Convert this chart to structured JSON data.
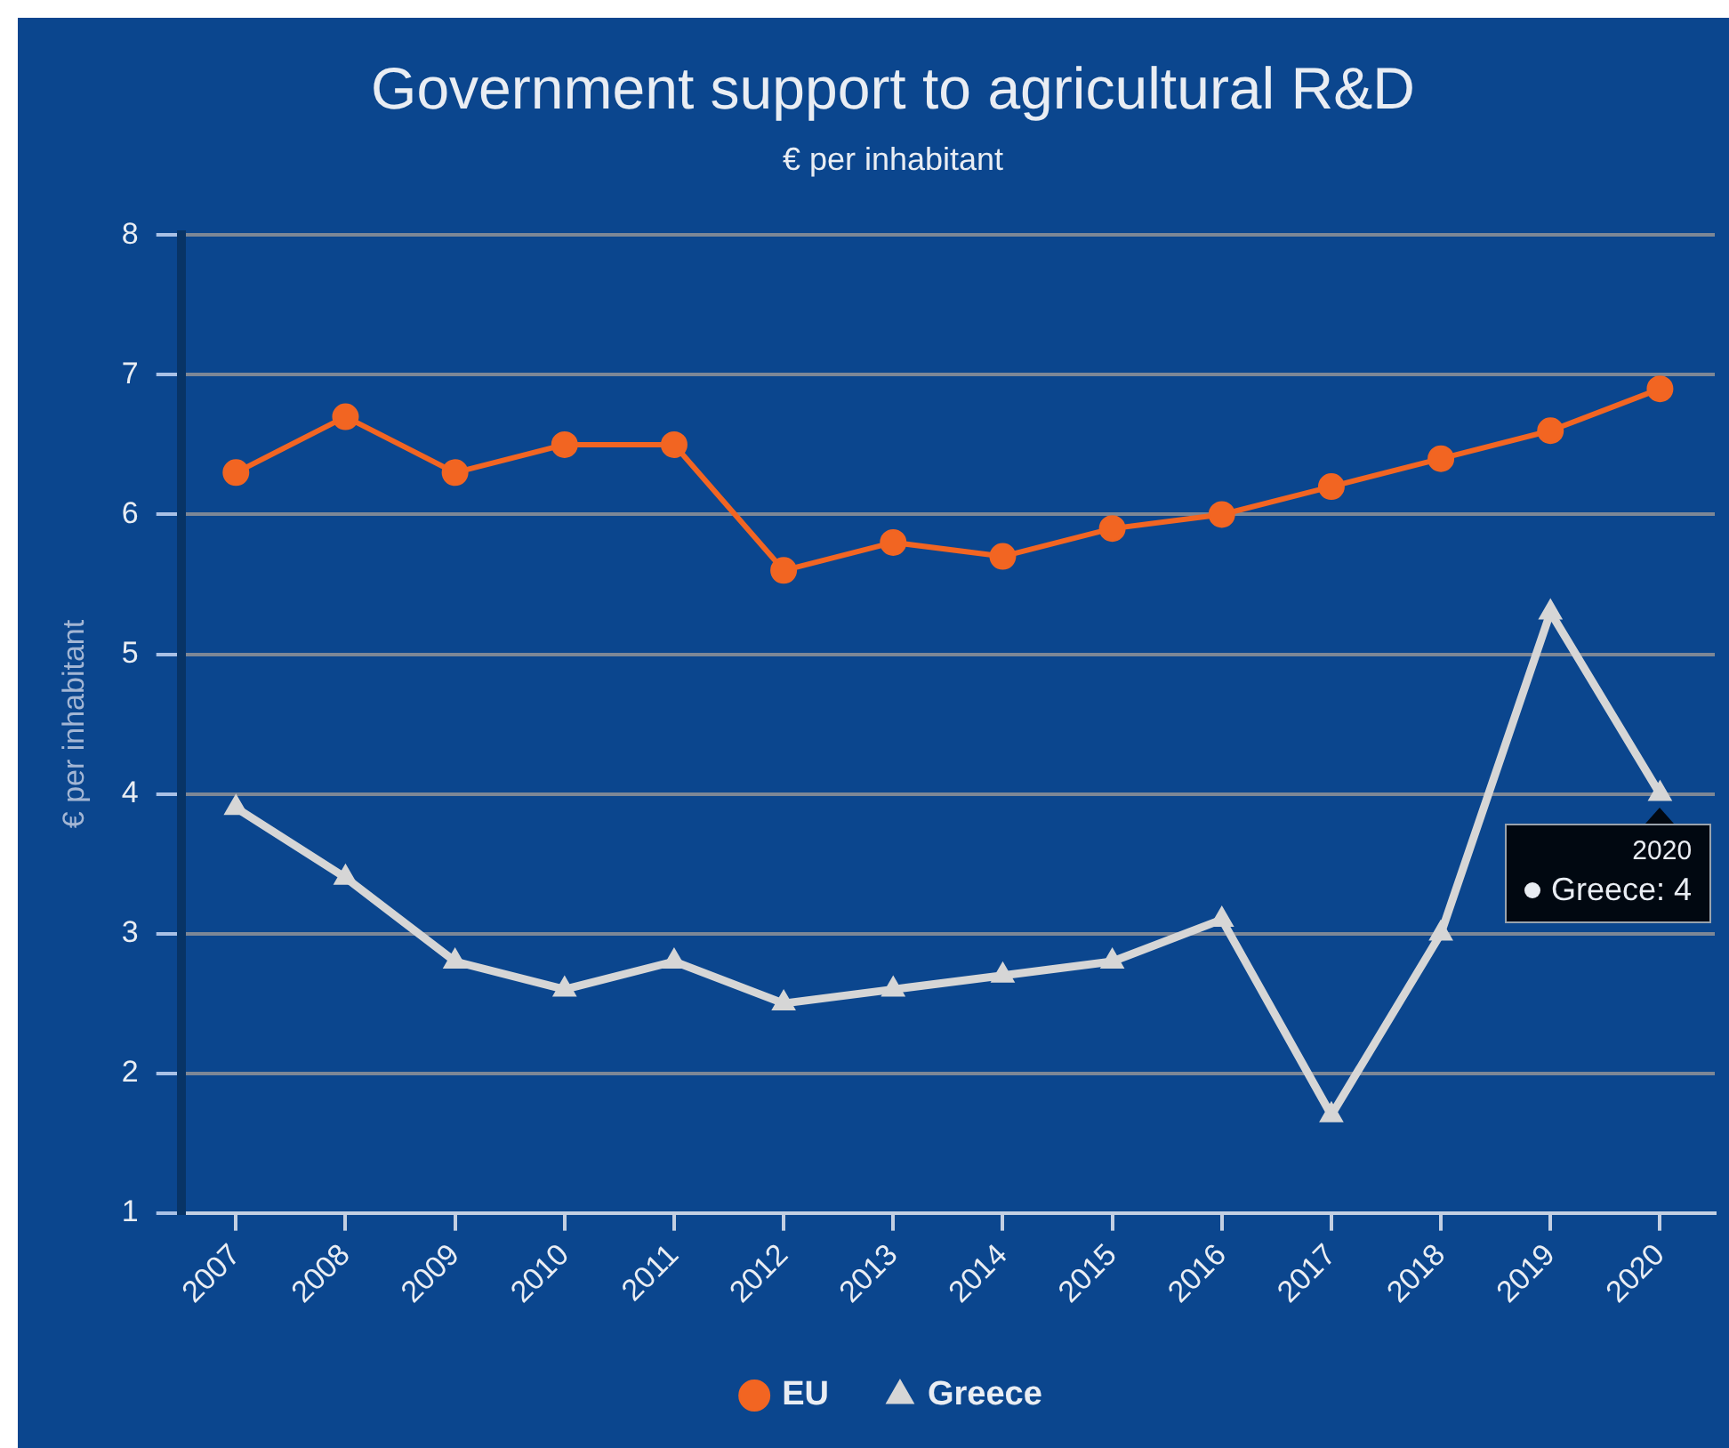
{
  "chart_data": {
    "type": "line",
    "title": "Government support to agricultural R&D",
    "subtitle": "€ per inhabitant",
    "ylabel": "€ per inhabitant",
    "categories": [
      "2007",
      "2008",
      "2009",
      "2010",
      "2011",
      "2012",
      "2013",
      "2014",
      "2015",
      "2016",
      "2017",
      "2018",
      "2019",
      "2020"
    ],
    "series": [
      {
        "name": "EU",
        "color": "#f26522",
        "marker": "circle",
        "values": [
          6.3,
          6.7,
          6.3,
          6.5,
          6.5,
          5.6,
          5.8,
          5.7,
          5.9,
          6.0,
          6.2,
          6.4,
          6.6,
          6.9
        ]
      },
      {
        "name": "Greece",
        "color": "#d6d6d6",
        "marker": "triangle",
        "values": [
          3.9,
          3.4,
          2.8,
          2.6,
          2.8,
          2.5,
          2.6,
          2.7,
          2.8,
          3.1,
          1.7,
          3.0,
          5.3,
          4
        ]
      }
    ],
    "ylim": [
      1,
      8
    ],
    "yticks": [
      1,
      2,
      3,
      4,
      5,
      6,
      7,
      8
    ],
    "grid": "y",
    "legend": "bottom",
    "annotations": [
      {
        "text": "2020",
        "x": "2020",
        "y": 4
      },
      {
        "text": "Greece: 4",
        "x": "2020",
        "y": 4
      }
    ]
  }
}
